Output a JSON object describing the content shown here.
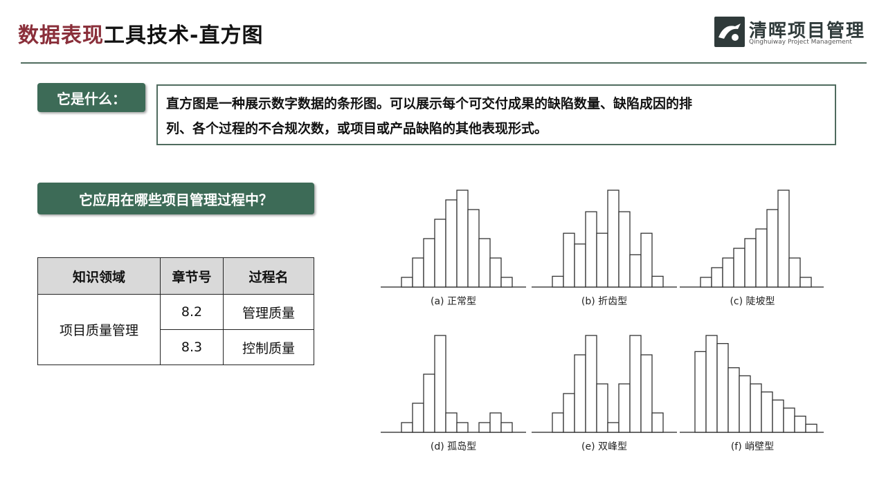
{
  "header": {
    "title_part1": "数据表现",
    "title_part2": "工具技术-直方图",
    "logo_name": "清晖项目管理",
    "logo_sub": "Qinghuiway Project Management"
  },
  "what": {
    "label": "它是什么：",
    "text_line1": "直方图是一种展示数字数据的条形图。可以展示每个可交付成果的缺陷数量、缺陷成因的排",
    "text_line2": "列、各个过程的不合规次数，或项目或产品缺陷的其他表现形式。"
  },
  "apply": {
    "label": "它应用在哪些项目管理过程中？"
  },
  "table": {
    "headers": [
      "知识领域",
      "章节号",
      "过程名"
    ],
    "area": "项目质量管理",
    "rows": [
      {
        "chapter": "8.2",
        "process": "管理质量"
      },
      {
        "chapter": "8.3",
        "process": "控制质量"
      }
    ]
  },
  "chart_data": [
    {
      "type": "bar",
      "title": "(a) 正常型",
      "values": [
        1,
        3,
        5,
        7,
        9,
        10,
        8,
        5,
        3,
        1
      ]
    },
    {
      "type": "bar",
      "title": "(b) 折齿型",
      "values": [
        1,
        5,
        4,
        7,
        5,
        9,
        7,
        3,
        5,
        1
      ]
    },
    {
      "type": "bar",
      "title": "(c) 陡坡型",
      "values": [
        1,
        2,
        3,
        4,
        5,
        6,
        8,
        10,
        3,
        1
      ]
    },
    {
      "type": "bar",
      "title": "(d) 孤岛型",
      "values": [
        1,
        3,
        6,
        10,
        2,
        1,
        0,
        1,
        2,
        1
      ]
    },
    {
      "type": "bar",
      "title": "(e) 双峰型",
      "values": [
        2,
        4,
        8,
        10,
        5,
        1,
        5,
        10,
        8,
        2
      ]
    },
    {
      "type": "bar",
      "title": "(f) 峭壁型",
      "values": [
        10,
        12,
        11,
        8,
        7,
        6,
        5,
        4,
        3,
        2,
        1
      ]
    }
  ]
}
